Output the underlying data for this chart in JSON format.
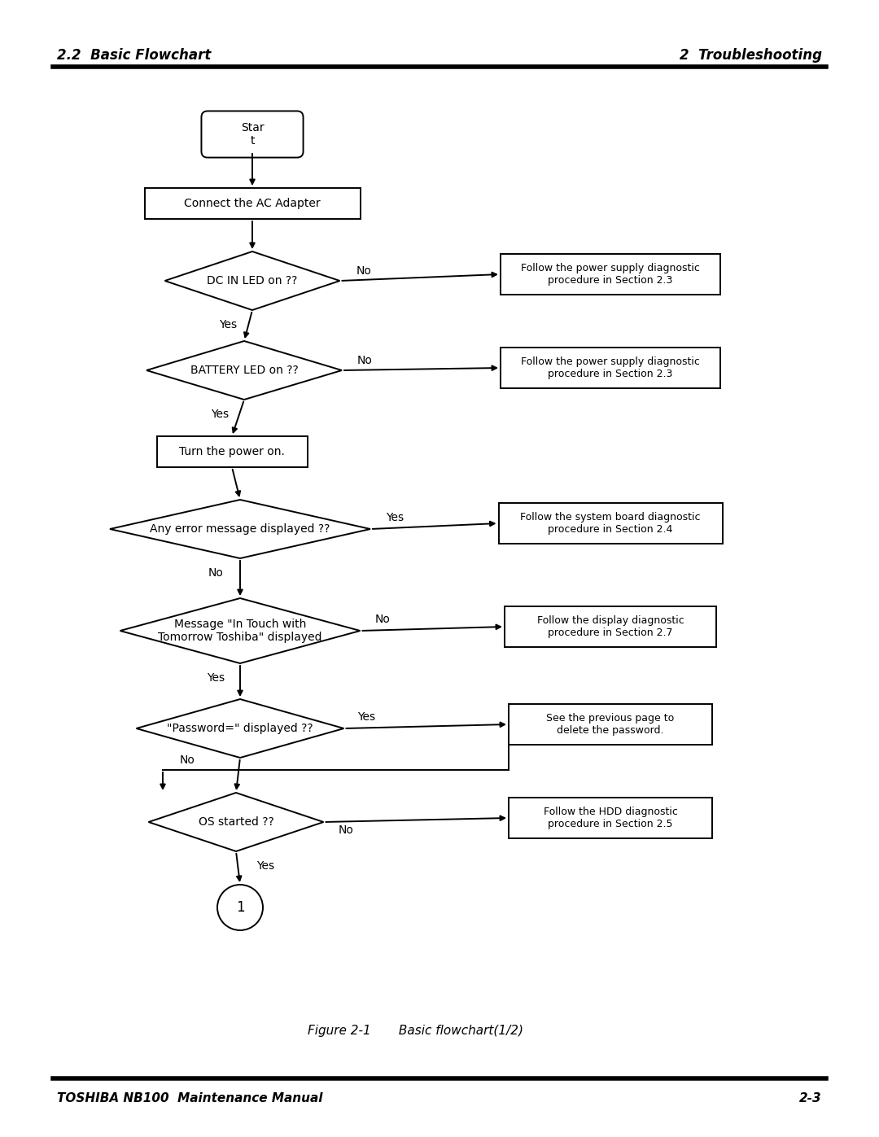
{
  "page_title_left": "2.2  Basic Flowchart",
  "page_title_right": "2  Troubleshooting",
  "footer_left": "TOSHIBA NB100  Maintenance Manual",
  "footer_right": "2-3",
  "figure_caption": "Figure 2-1       Basic flowchart(1/2)",
  "bg_color": "#ffffff",
  "line_color": "#000000",
  "fig_width": 10.8,
  "fig_height": 13.97,
  "dpi": 100
}
